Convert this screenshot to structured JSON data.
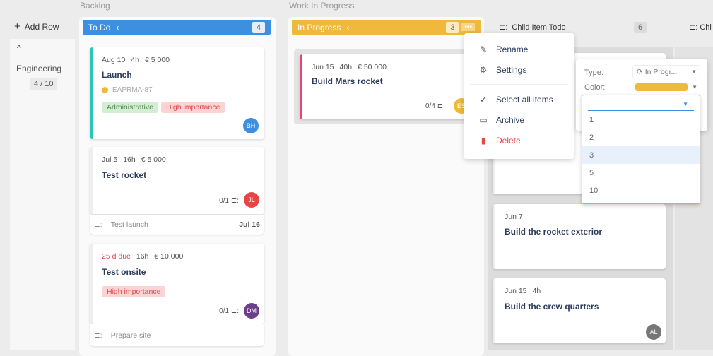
{
  "left": {
    "add_row": "Add Row",
    "row_name": "Engineering",
    "row_count": "4 / 10"
  },
  "groups": {
    "backlog": "Backlog",
    "wip": "Work In Progress"
  },
  "columns": {
    "todo": {
      "title": "To Do",
      "count": "4",
      "color": "#3d8fe0"
    },
    "in_progress": {
      "title": "In Progress",
      "count": "3",
      "color": "#f0b93c"
    },
    "child_todo": {
      "title": "Child Item Todo",
      "count": "6"
    },
    "child_next": {
      "title": "Chi"
    }
  },
  "cards": [
    {
      "date": "Aug 10",
      "hours": "4h",
      "cost": "€ 5 000",
      "title": "Launch",
      "ref": "EAPRMA-87",
      "tags": [
        "Administrative",
        "High importance"
      ],
      "avatar": "BH"
    },
    {
      "date": "Jul 5",
      "hours": "16h",
      "cost": "€ 5 000",
      "title": "Test rocket",
      "subcount": "0/1",
      "avatar": "JL",
      "child": "Test launch",
      "child_date": "Jul 16"
    },
    {
      "date": "25 d due",
      "hours": "16h",
      "cost": "€ 10 000",
      "title": "Test onsite",
      "tags": [
        "High importance"
      ],
      "subcount": "0/1",
      "avatar": "DM",
      "child": "Prepare site"
    },
    {
      "date": "Jun 15",
      "hours": "40h",
      "cost": "€ 50 000",
      "title": "Build Mars rocket",
      "subcount": "0/4",
      "avatar": "ES"
    },
    {
      "date": "Jun 7",
      "title": "Build the rocket exterior"
    },
    {
      "date": "Jun 15",
      "hours": "4h",
      "title": "Build the crew quarters",
      "avatar": "AL"
    }
  ],
  "menu": {
    "items": [
      "Rename",
      "Settings",
      "Select all items",
      "Archive",
      "Delete"
    ]
  },
  "settings": {
    "type_label": "Type:",
    "type_value": "In Progr...",
    "color_label": "Color:",
    "color_value": "#f0b93c",
    "options": [
      "1",
      "2",
      "3",
      "5",
      "10"
    ],
    "selected": "3"
  }
}
